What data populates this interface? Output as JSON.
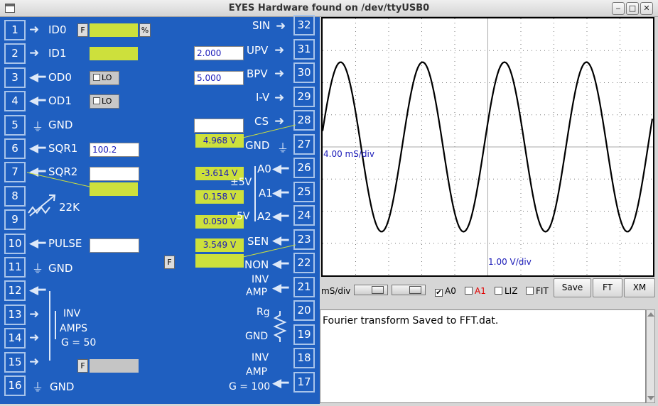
{
  "window": {
    "title": "EYES Hardware found on /dev/ttyUSB0"
  },
  "panel": {
    "left_pins": [
      "1",
      "2",
      "3",
      "4",
      "5",
      "6",
      "7",
      "8",
      "9",
      "10",
      "11",
      "12",
      "13",
      "14",
      "15",
      "16"
    ],
    "right_pins": [
      "32",
      "31",
      "30",
      "29",
      "28",
      "27",
      "26",
      "25",
      "24",
      "23",
      "22",
      "21",
      "20",
      "19",
      "18",
      "17"
    ],
    "left_labels": {
      "id0": "ID0",
      "id1": "ID1",
      "od0": "OD0",
      "od1": "OD1",
      "gnd5": "GND",
      "sqr1": "SQR1",
      "sqr2": "SQR2",
      "r22k": "22K",
      "pulse": "PULSE",
      "gnd11": "GND",
      "inv": "INV",
      "amps": "AMPS",
      "g50": "G = 50",
      "gnd16": "GND"
    },
    "right_labels": {
      "sin": "SIN",
      "upv": "UPV",
      "bpv": "BPV",
      "iv": "I-V",
      "cs": "CS",
      "gnd27": "GND",
      "a0": "A0",
      "pm5v": "±5V",
      "a1": "A1",
      "fivev": "5V",
      "a2": "A2",
      "sen": "SEN",
      "non": "NON",
      "inv": "INV",
      "amp": "AMP",
      "rg": "Rg",
      "gnd20": "GND",
      "inv18": "INV",
      "amp18": "AMP",
      "g100": "G = 100"
    },
    "f_button": "F",
    "pct_button": "%",
    "lo_label": "LO",
    "sqr1_value": "100.2",
    "upv_value": "2.000",
    "bpv_value": "5.000",
    "readings": {
      "cs": "4.968 V",
      "a0": "-3.614 V",
      "a1": "0.158 V",
      "a2": "0.050 V",
      "sen": "3.549 V"
    }
  },
  "scope": {
    "time_scale": "4.00 mS/div",
    "volt_scale": "1.00 V/div",
    "trace_color": "#000000",
    "trace": {
      "amplitude_div": 2.64,
      "period_div": 2.48
    }
  },
  "controls": {
    "msdiv_label": "mS/div",
    "checks": [
      {
        "label": "A0",
        "checked": true,
        "color": "#000000"
      },
      {
        "label": "A1",
        "checked": false,
        "color": "#e00000"
      },
      {
        "label": "LIZ",
        "checked": false,
        "color": "#000000"
      },
      {
        "label": "FIT",
        "checked": false,
        "color": "#000000"
      }
    ],
    "buttons": {
      "save": "Save",
      "ft": "FT",
      "xm": "XM"
    }
  },
  "log": {
    "text": "Fourier transform Saved to FFT.dat."
  },
  "colors": {
    "panel": "#1f5fc0",
    "reading_bg": "#cde03c"
  }
}
